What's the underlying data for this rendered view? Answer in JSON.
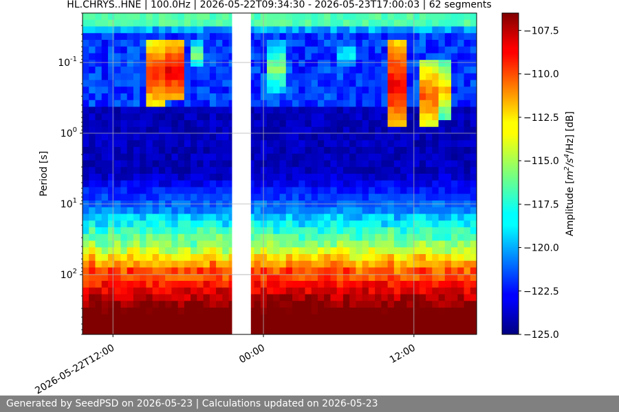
{
  "title": "HL.CHRYS..HNE | 100.0Hz | 2026-05-22T09:34:30 - 2026-05-23T17:00:03 | 62 segments",
  "footer": "Generated by SeedPSD on 2026-05-23 | Calculations updated on 2026-05-23",
  "chart_data": {
    "type": "heatmap",
    "title": "HL.CHRYS..HNE | 100.0Hz | 2026-05-22T09:34:30 - 2026-05-23T17:00:03 | 62 segments",
    "xlabel": "",
    "ylabel": "Period [s]",
    "x_start": "2026-05-22T09:34:30",
    "x_end": "2026-05-23T17:00:03",
    "segments": 62,
    "x_ticks": [
      {
        "time": "2026-05-22T12:00",
        "label": "2026-05-22T12:00"
      },
      {
        "time": "2026-05-23T00:00",
        "label": "00:00"
      },
      {
        "time": "2026-05-23T12:00",
        "label": "12:00"
      }
    ],
    "gap": {
      "start": "2026-05-22T21:30",
      "end": "2026-05-22T23:00"
    },
    "y_scale": "log",
    "y_inverted": true,
    "y_range": [
      0.02,
      700
    ],
    "y_ticks": [
      {
        "exp": "-1",
        "value": 0.1
      },
      {
        "exp": "0",
        "value": 1
      },
      {
        "exp": "1",
        "value": 10
      },
      {
        "exp": "2",
        "value": 100
      }
    ],
    "grid": true,
    "colormap": "jet",
    "colorbar": {
      "label_prefix": "Amplitude [",
      "label_unit": "m",
      "label_sup1": "2",
      "label_mid": "/s",
      "label_sup2": "4",
      "label_end": "/Hz] [dB]",
      "min": -125.0,
      "max": -106.5,
      "ticks": [
        "-107.5",
        "-110.0",
        "-112.5",
        "-115.0",
        "-117.5",
        "-120.0",
        "-122.5",
        "-125.0"
      ]
    },
    "events": [
      {
        "time": "2026-05-22T15:30",
        "period_low": 0.05,
        "period_high": 0.45,
        "peak_db": -110
      },
      {
        "time": "2026-05-22T16:50",
        "period_low": 0.05,
        "period_high": 0.35,
        "peak_db": -109
      },
      {
        "time": "2026-05-22T18:40",
        "period_low": 0.05,
        "period_high": 0.12,
        "peak_db": -116
      },
      {
        "time": "2026-05-23T01:00",
        "period_low": 0.05,
        "period_high": 0.3,
        "peak_db": -116
      },
      {
        "time": "2026-05-23T06:30",
        "period_low": 0.05,
        "period_high": 0.12,
        "peak_db": -118
      },
      {
        "time": "2026-05-23T10:50",
        "period_low": 0.05,
        "period_high": 0.9,
        "peak_db": -109
      },
      {
        "time": "2026-05-23T13:20",
        "period_low": 0.1,
        "period_high": 0.9,
        "peak_db": -111
      },
      {
        "time": "2026-05-23T14:20",
        "period_low": 0.1,
        "period_high": 0.6,
        "peak_db": -113
      }
    ]
  }
}
